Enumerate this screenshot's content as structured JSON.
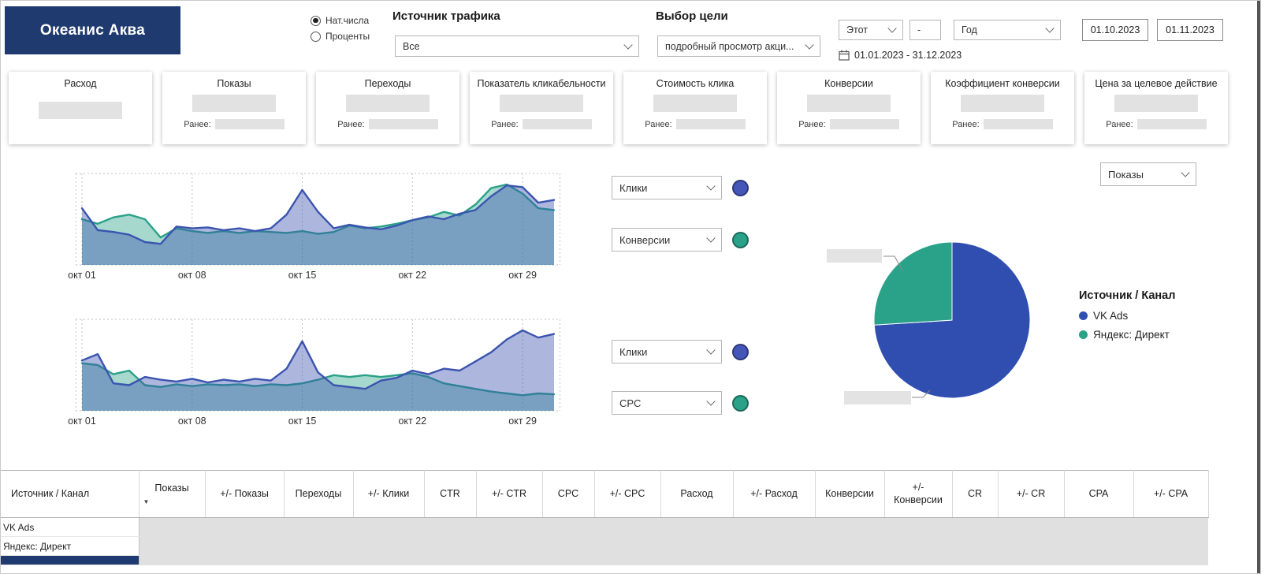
{
  "colors": {
    "navy": "#1e3a6e",
    "blue": "#3b54b0",
    "teal": "#2aa189",
    "placeholder": "#e2e2e2"
  },
  "logo": {
    "title": "Океанис Аква"
  },
  "header": {
    "display_mode": {
      "options": [
        {
          "label": "Нат.числа",
          "selected": true
        },
        {
          "label": "Проценты",
          "selected": false
        }
      ]
    },
    "traffic_source": {
      "label": "Источник трафика",
      "value": "Все"
    },
    "goal": {
      "label": "Выбор цели",
      "value": "подробный просмотр акци..."
    },
    "period": {
      "preset": "Этот",
      "separator": "-",
      "unit": "Год",
      "range": "01.01.2023 - 31.12.2023",
      "date_start": "01.10.2023",
      "date_end": "01.11.2023"
    }
  },
  "kpi": {
    "prev_label": "Ранее:",
    "cards": [
      {
        "title": "Расход",
        "show_prev": false
      },
      {
        "title": "Показы",
        "show_prev": true
      },
      {
        "title": "Переходы",
        "show_prev": true
      },
      {
        "title": "Показатель кликабельности",
        "show_prev": true
      },
      {
        "title": "Стоимость клика",
        "show_prev": true
      },
      {
        "title": "Конверсии",
        "show_prev": true
      },
      {
        "title": "Коэффициент конверсии",
        "show_prev": true
      },
      {
        "title": "Цена за целевое действие",
        "show_prev": true
      }
    ],
    "values_redacted": true
  },
  "selectors": {
    "chart1": [
      {
        "value": "Клики",
        "color": "#4456b8"
      },
      {
        "value": "Конверсии",
        "color": "#2aa189"
      }
    ],
    "chart2": [
      {
        "value": "Клики",
        "color": "#4456b8"
      },
      {
        "value": "CPC",
        "color": "#2aa189"
      }
    ],
    "pie_metric": {
      "value": "Показы"
    }
  },
  "legend": {
    "title": "Источник / Канал",
    "items": [
      {
        "label": "VK Ads",
        "color": "#2f4eb0"
      },
      {
        "label": "Яндекс: Директ",
        "color": "#2aa189"
      }
    ]
  },
  "chart_data": [
    {
      "type": "area",
      "x": [
        1,
        2,
        3,
        4,
        5,
        6,
        7,
        8,
        9,
        10,
        11,
        12,
        13,
        14,
        15,
        16,
        17,
        18,
        19,
        20,
        21,
        22,
        23,
        24,
        25,
        26,
        27,
        28,
        29,
        30,
        31
      ],
      "tick_x": [
        1,
        8,
        15,
        22,
        29
      ],
      "tick_labels": [
        "окт 01",
        "окт 08",
        "окт 15",
        "окт 22",
        "окт 29"
      ],
      "ylim": [
        0,
        100
      ],
      "series": [
        {
          "name": "Клики",
          "color": "#3b54b0",
          "values": [
            62,
            38,
            36,
            33,
            25,
            23,
            42,
            40,
            41,
            38,
            40,
            37,
            40,
            55,
            82,
            58,
            40,
            44,
            41,
            39,
            43,
            49,
            53,
            50,
            56,
            60,
            75,
            87,
            85,
            68,
            71
          ]
        },
        {
          "name": "Конверсии",
          "color": "#2aa189",
          "values": [
            50,
            45,
            52,
            55,
            50,
            30,
            40,
            37,
            35,
            37,
            35,
            37,
            36,
            35,
            37,
            34,
            36,
            43,
            40,
            42,
            45,
            49,
            52,
            58,
            54,
            66,
            84,
            88,
            78,
            62,
            60
          ]
        }
      ]
    },
    {
      "type": "area",
      "x": [
        1,
        2,
        3,
        4,
        5,
        6,
        7,
        8,
        9,
        10,
        11,
        12,
        13,
        14,
        15,
        16,
        17,
        18,
        19,
        20,
        21,
        22,
        23,
        24,
        25,
        26,
        27,
        28,
        29,
        30,
        31
      ],
      "tick_x": [
        1,
        8,
        15,
        22,
        29
      ],
      "tick_labels": [
        "окт 01",
        "окт 08",
        "окт 15",
        "окт 22",
        "окт 29"
      ],
      "ylim": [
        0,
        100
      ],
      "series": [
        {
          "name": "Клики",
          "color": "#3b54b0",
          "values": [
            55,
            62,
            30,
            28,
            37,
            34,
            32,
            35,
            31,
            34,
            32,
            35,
            33,
            46,
            76,
            42,
            28,
            26,
            24,
            33,
            36,
            44,
            40,
            46,
            44,
            54,
            64,
            78,
            88,
            80,
            84
          ]
        },
        {
          "name": "CPC",
          "color": "#2aa189",
          "values": [
            52,
            50,
            40,
            44,
            28,
            26,
            29,
            27,
            29,
            28,
            29,
            27,
            29,
            28,
            30,
            34,
            39,
            37,
            39,
            37,
            39,
            41,
            37,
            30,
            27,
            24,
            21,
            19,
            17,
            19,
            18
          ]
        }
      ]
    },
    {
      "type": "pie",
      "metric": "Показы",
      "slices": [
        {
          "label": "VK Ads",
          "share": 74,
          "color": "#2f4eb0"
        },
        {
          "label": "Яндекс: Директ",
          "share": 26,
          "color": "#2aa189"
        }
      ],
      "labels_redacted": true
    }
  ],
  "table": {
    "columns": [
      "Источник / Канал",
      "Показы",
      "+/- Показы",
      "Переходы",
      "+/- Клики",
      "CTR",
      "+/- CTR",
      "CPC",
      "+/- CPC",
      "Расход",
      "+/- Расход",
      "Конверсии",
      "+/- Конверсии",
      "CR",
      "+/- CR",
      "CPA",
      "+/- CPA"
    ],
    "sort": {
      "column": "Показы",
      "direction": "desc"
    },
    "rows": [
      {
        "source": "VK Ads"
      },
      {
        "source": "Яндекс: Директ"
      }
    ],
    "partial_row_visible": true,
    "values_redacted": true
  }
}
